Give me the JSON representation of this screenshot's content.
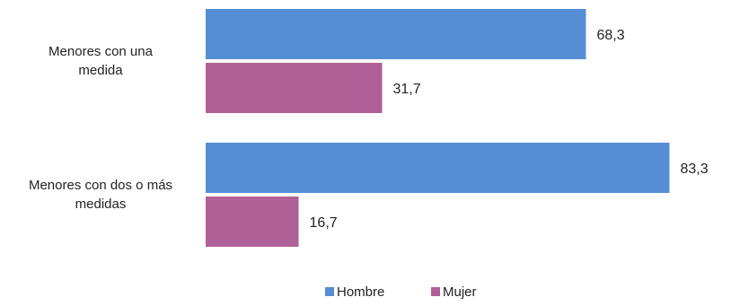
{
  "chart_data": {
    "type": "bar",
    "orientation": "horizontal",
    "categories": [
      "Menores con una medida",
      "Menores con dos o más medidas"
    ],
    "category_lines": [
      [
        "Menores con una",
        "medida"
      ],
      [
        "Menores con dos o más",
        "medidas"
      ]
    ],
    "series": [
      {
        "name": "Hombre",
        "values": [
          68.3,
          83.3
        ],
        "labels": [
          "68,3",
          "83,3"
        ],
        "color": "#558ed5"
      },
      {
        "name": "Mujer",
        "values": [
          31.7,
          16.7
        ],
        "labels": [
          "31,7",
          "16,7"
        ],
        "color": "#b06096"
      }
    ],
    "xlim": [
      0,
      100
    ],
    "grid": false,
    "legend": "bottom-center"
  }
}
